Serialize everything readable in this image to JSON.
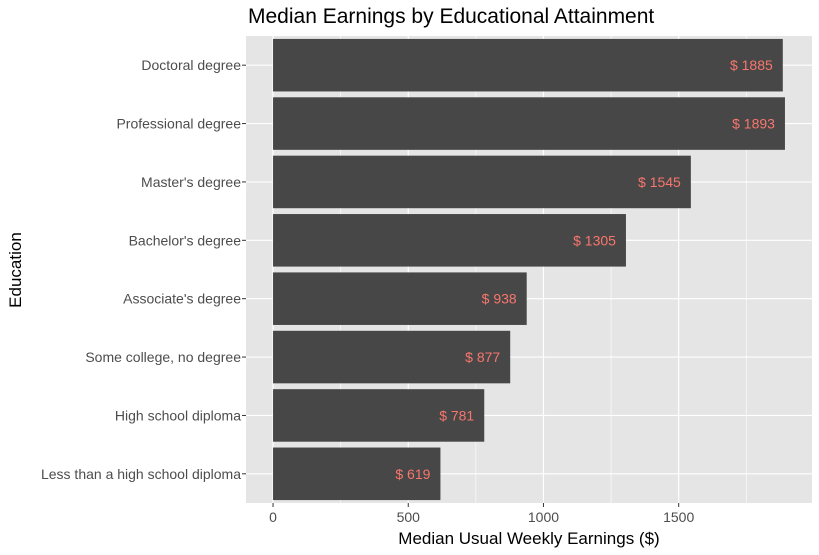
{
  "chart_data": {
    "type": "bar",
    "orientation": "horizontal",
    "title": "Median Earnings by Educational Attainment",
    "xlabel": "Median Usual Weekly Earnings ($)",
    "ylabel": "Education",
    "categories": [
      "Doctoral degree",
      "Professional degree",
      "Master's degree",
      "Bachelor's degree",
      "Associate's degree",
      "Some college, no degree",
      "High school diploma",
      "Less than a high school diploma"
    ],
    "values": [
      1885,
      1893,
      1545,
      1305,
      938,
      877,
      781,
      619
    ],
    "data_labels": [
      "$ 1885",
      "$ 1893",
      "$ 1545",
      "$ 1305",
      "$ 938",
      "$ 877",
      "$ 781",
      "$ 619"
    ],
    "x_ticks": [
      0,
      500,
      1000,
      1500
    ],
    "x_tick_labels": [
      "0",
      "500",
      "1000",
      "1500"
    ],
    "xlim": [
      -100,
      1993
    ],
    "grid": true,
    "legend": "none",
    "colors": {
      "bar": "#474747",
      "panel_background": "#e5e5e5",
      "grid": "#ffffff",
      "data_label": "#f8766d"
    }
  }
}
